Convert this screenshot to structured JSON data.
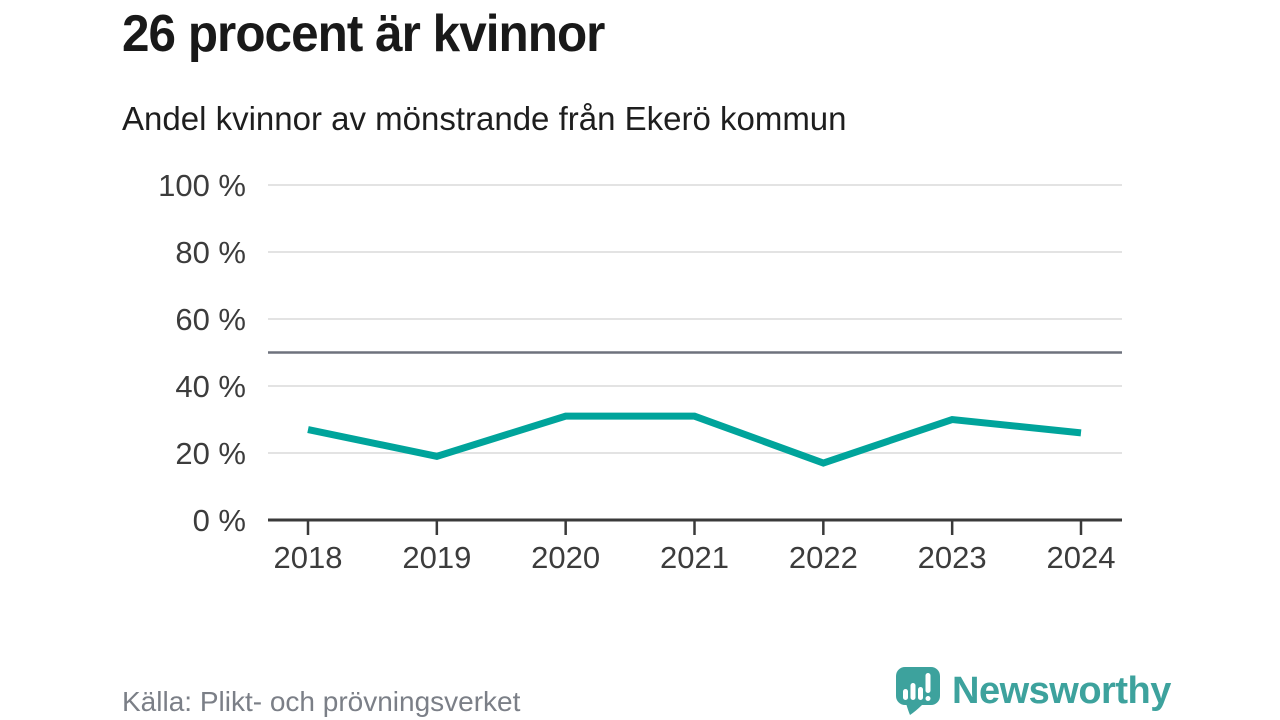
{
  "header": {
    "title": "26 procent är kvinnor",
    "subtitle": "Andel kvinnor av mönstrande från Ekerö kommun"
  },
  "chart_data": {
    "type": "line",
    "title": "26 procent är kvinnor",
    "subtitle": "Andel kvinnor av mönstrande från Ekerö kommun",
    "x": [
      2018,
      2019,
      2020,
      2021,
      2022,
      2023,
      2024
    ],
    "series": [
      {
        "name": "Andel kvinnor av mönstrande",
        "values": [
          27,
          19,
          31,
          31,
          17,
          30,
          26
        ]
      }
    ],
    "ylim": [
      0,
      100
    ],
    "yticks": [
      0,
      20,
      40,
      60,
      80,
      100
    ],
    "ytick_suffix": " %",
    "reference_line": 50,
    "grid": true,
    "legend": "none",
    "colors": {
      "line": "#00a49b",
      "grid": "#e3e3e3",
      "reference": "#6e727d",
      "axis": "#3a3a3a",
      "tick_text": "#3c3c3c"
    }
  },
  "footer": {
    "source": "Källa: Plikt- och prövningsverket",
    "brand": "Newsworthy",
    "brand_color": "#3da29d"
  }
}
